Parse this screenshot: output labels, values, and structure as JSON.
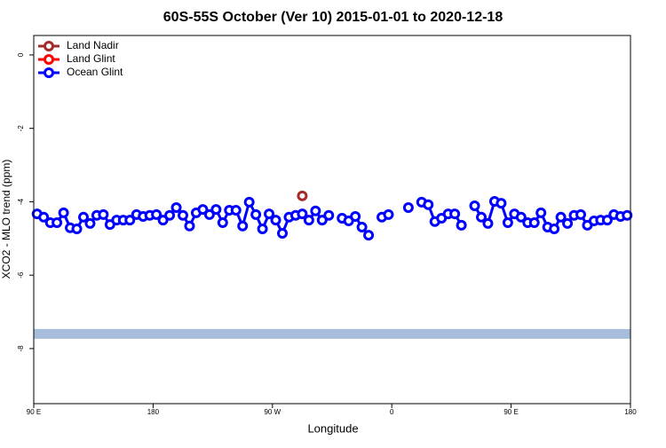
{
  "chart_data": {
    "type": "line",
    "title": "60S-55S October (Ver 10)   2015-01-01 to 2020-12-18",
    "xlabel": "Longitude",
    "ylabel": "XCO2 - MLO trend (ppm)",
    "xlim": [
      90,
      540
    ],
    "ylim": [
      -9.5,
      0.53
    ],
    "xticks": [
      {
        "value": 90,
        "label": "90 E"
      },
      180,
      {
        "value": 270,
        "label": "90 W"
      },
      {
        "value": 360,
        "label": "0"
      },
      {
        "value": 450,
        "label": "90 E"
      },
      {
        "value": 540,
        "label": "180"
      }
    ],
    "yticks": [
      0,
      -2,
      -4,
      -6,
      -8
    ],
    "grid": false,
    "legend": "top-left",
    "reference_line": {
      "value": -7.6,
      "color": "#a6bddb"
    },
    "series": [
      {
        "name": "Land Nadir",
        "color": "#a52a2a",
        "x": [
          292.5
        ],
        "values": [
          -3.84
        ]
      },
      {
        "name": "Land Glint",
        "color": "#ff0000",
        "x": [],
        "values": []
      },
      {
        "name": "Ocean Glint",
        "color": "#0000ff",
        "x": [
          92.5,
          97.5,
          102.5,
          107.5,
          112.5,
          117.5,
          122.5,
          127.5,
          132.5,
          137.5,
          142.5,
          147.5,
          152.5,
          157.5,
          162.5,
          167.5,
          172.5,
          177.5,
          182.5,
          187.5,
          192.5,
          197.5,
          202.5,
          207.5,
          212.5,
          217.5,
          222.5,
          227.5,
          232.5,
          237.5,
          242.5,
          247.5,
          252.5,
          257.5,
          262.5,
          267.5,
          272.5,
          277.5,
          282.5,
          287.5,
          292.5,
          297.5,
          302.5,
          307.5,
          312.5,
          317.5,
          322.5,
          327.5,
          332.5,
          337.5,
          342.5,
          347.5,
          352.5,
          357.5,
          362.5,
          367.5,
          372.5,
          377.5,
          382.5,
          387.5,
          392.5,
          397.5,
          402.5,
          407.5,
          412.5,
          417.5,
          422.5,
          427.5,
          432.5,
          437.5,
          442.5,
          447.5,
          452.5,
          457.5,
          462.5,
          467.5,
          472.5,
          477.5,
          482.5,
          487.5,
          492.5,
          497.5,
          502.5,
          507.5,
          512.5,
          517.5,
          522.5,
          527.5,
          532.5,
          537.5
        ],
        "values": [
          -4.33,
          -4.42,
          -4.57,
          -4.57,
          -4.3,
          -4.71,
          -4.74,
          -4.42,
          -4.59,
          -4.37,
          -4.35,
          -4.62,
          -4.5,
          -4.5,
          -4.5,
          -4.35,
          -4.4,
          -4.37,
          -4.35,
          -4.5,
          -4.37,
          -4.16,
          -4.37,
          -4.66,
          -4.3,
          -4.21,
          -4.35,
          -4.21,
          -4.57,
          -4.23,
          -4.23,
          -4.66,
          -4.01,
          -4.35,
          -4.74,
          -4.33,
          -4.5,
          -4.86,
          -4.42,
          -4.37,
          -4.33,
          -4.5,
          -4.25,
          -4.5,
          -4.37,
          null,
          -4.45,
          -4.52,
          -4.4,
          -4.69,
          -4.91,
          null,
          -4.42,
          -4.35,
          null,
          null,
          -4.16,
          null,
          -4.01,
          -4.08,
          -4.54,
          -4.45,
          -4.33,
          -4.33,
          -4.64,
          null,
          -4.11,
          -4.42,
          -4.59,
          -3.99,
          -4.04,
          -4.57,
          -4.33,
          -4.42,
          -4.57,
          -4.57,
          -4.3,
          -4.69,
          -4.74,
          -4.42,
          -4.59,
          -4.37,
          -4.35,
          -4.64,
          -4.52,
          -4.5,
          -4.5,
          -4.35,
          -4.4,
          -4.37
        ]
      }
    ]
  }
}
